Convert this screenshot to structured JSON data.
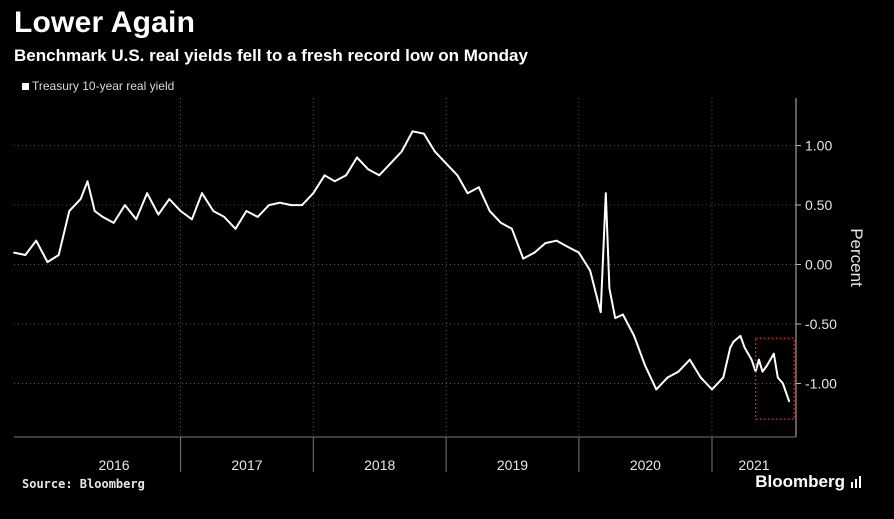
{
  "header": {
    "title": "Lower Again",
    "subtitle": "Benchmark U.S. real yields fell to a fresh record low on Monday"
  },
  "footer": {
    "source": "Source: Bloomberg",
    "brand": "Bloomberg"
  },
  "icons": {
    "brand_mark": "bloomberg-terminal-icon"
  },
  "colors": {
    "background": "#000000",
    "series": "#ffffff",
    "highlight_box": "#e02424"
  },
  "chart_data": {
    "type": "line",
    "title": "Lower Again",
    "subtitle": "Benchmark U.S. real yields fell to a fresh record low on Monday",
    "ylabel": "Percent",
    "ylim": [
      -1.45,
      1.4
    ],
    "yticks": [
      1.0,
      0.5,
      0.0,
      -0.5,
      -1.0
    ],
    "ytick_labels": [
      "1.00",
      "0.50",
      "0.00",
      "-0.50",
      "-1.00"
    ],
    "xlim": [
      "2015-10-01",
      "2021-06-01"
    ],
    "year_labels": [
      "2016",
      "2017",
      "2018",
      "2019",
      "2020",
      "2021"
    ],
    "legend": {
      "position": "top-left",
      "entries": [
        "Treasury 10-year real yield"
      ]
    },
    "grid": "dotted",
    "series": [
      {
        "name": "Treasury 10-year real yield",
        "points": [
          [
            "2015-10-01",
            0.1
          ],
          [
            "2015-11-01",
            0.08
          ],
          [
            "2015-12-01",
            0.2
          ],
          [
            "2016-01-01",
            0.02
          ],
          [
            "2016-02-01",
            0.08
          ],
          [
            "2016-03-01",
            0.45
          ],
          [
            "2016-04-01",
            0.55
          ],
          [
            "2016-04-20",
            0.7
          ],
          [
            "2016-05-10",
            0.45
          ],
          [
            "2016-06-01",
            0.4
          ],
          [
            "2016-07-01",
            0.35
          ],
          [
            "2016-08-01",
            0.5
          ],
          [
            "2016-09-01",
            0.38
          ],
          [
            "2016-10-01",
            0.6
          ],
          [
            "2016-11-01",
            0.42
          ],
          [
            "2016-12-01",
            0.55
          ],
          [
            "2017-01-01",
            0.45
          ],
          [
            "2017-02-01",
            0.38
          ],
          [
            "2017-03-01",
            0.6
          ],
          [
            "2017-04-01",
            0.45
          ],
          [
            "2017-05-01",
            0.4
          ],
          [
            "2017-06-01",
            0.3
          ],
          [
            "2017-07-01",
            0.45
          ],
          [
            "2017-08-01",
            0.4
          ],
          [
            "2017-09-01",
            0.5
          ],
          [
            "2017-10-01",
            0.52
          ],
          [
            "2017-11-01",
            0.5
          ],
          [
            "2017-12-01",
            0.5
          ],
          [
            "2018-01-01",
            0.6
          ],
          [
            "2018-02-01",
            0.75
          ],
          [
            "2018-03-01",
            0.7
          ],
          [
            "2018-04-01",
            0.75
          ],
          [
            "2018-05-01",
            0.9
          ],
          [
            "2018-06-01",
            0.8
          ],
          [
            "2018-07-01",
            0.75
          ],
          [
            "2018-08-01",
            0.85
          ],
          [
            "2018-09-01",
            0.95
          ],
          [
            "2018-10-01",
            1.12
          ],
          [
            "2018-11-01",
            1.1
          ],
          [
            "2018-12-01",
            0.95
          ],
          [
            "2019-01-01",
            0.85
          ],
          [
            "2019-02-01",
            0.75
          ],
          [
            "2019-03-01",
            0.6
          ],
          [
            "2019-04-01",
            0.65
          ],
          [
            "2019-05-01",
            0.45
          ],
          [
            "2019-06-01",
            0.35
          ],
          [
            "2019-07-01",
            0.3
          ],
          [
            "2019-08-01",
            0.05
          ],
          [
            "2019-09-01",
            0.1
          ],
          [
            "2019-10-01",
            0.18
          ],
          [
            "2019-11-01",
            0.2
          ],
          [
            "2019-12-01",
            0.15
          ],
          [
            "2020-01-01",
            0.1
          ],
          [
            "2020-02-01",
            -0.05
          ],
          [
            "2020-03-01",
            -0.4
          ],
          [
            "2020-03-15",
            0.6
          ],
          [
            "2020-03-25",
            -0.2
          ],
          [
            "2020-04-10",
            -0.45
          ],
          [
            "2020-05-01",
            -0.42
          ],
          [
            "2020-06-01",
            -0.6
          ],
          [
            "2020-07-01",
            -0.85
          ],
          [
            "2020-08-01",
            -1.05
          ],
          [
            "2020-09-01",
            -0.95
          ],
          [
            "2020-10-01",
            -0.9
          ],
          [
            "2020-11-01",
            -0.8
          ],
          [
            "2020-12-01",
            -0.95
          ],
          [
            "2021-01-01",
            -1.05
          ],
          [
            "2021-02-01",
            -0.95
          ],
          [
            "2021-02-20",
            -0.7
          ],
          [
            "2021-03-01",
            -0.65
          ],
          [
            "2021-03-20",
            -0.6
          ],
          [
            "2021-04-01",
            -0.7
          ],
          [
            "2021-04-20",
            -0.8
          ],
          [
            "2021-05-01",
            -0.9
          ],
          [
            "2021-05-10",
            -0.8
          ],
          [
            "2021-05-20",
            -0.9
          ],
          [
            "2021-06-01",
            -0.85
          ],
          [
            "2021-06-20",
            -0.75
          ],
          [
            "2021-07-01",
            -0.95
          ],
          [
            "2021-07-15",
            -1.0
          ],
          [
            "2021-08-01",
            -1.15
          ]
        ]
      }
    ],
    "annotations": [
      {
        "type": "box",
        "x_from": "2021-05-01",
        "x_to": "2021-08-15",
        "y_from": -1.3,
        "y_to": -0.62,
        "style": "dotted-red"
      }
    ]
  }
}
